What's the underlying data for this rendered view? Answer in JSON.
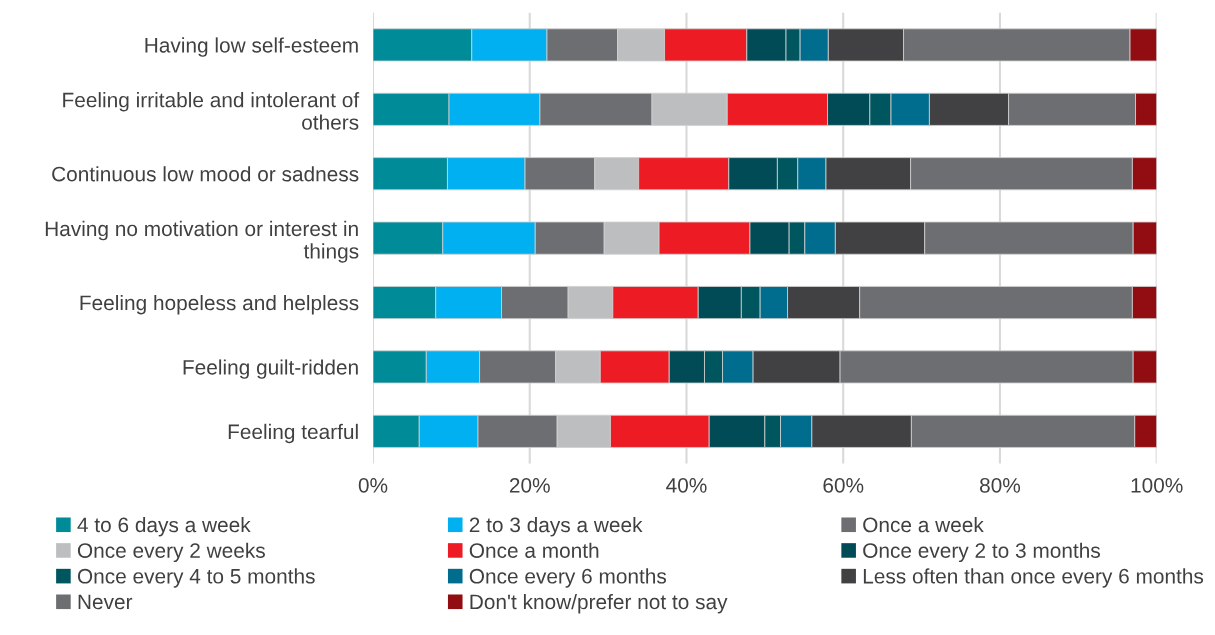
{
  "chart_data": {
    "type": "bar",
    "orientation": "horizontal",
    "stacked": true,
    "grid": "x",
    "legend": "bottom",
    "categories": [
      "Having low self-esteem",
      "Feeling irritable and intolerant of others",
      "Continuous low mood or sadness",
      "Having no motivation or interest in things",
      "Feeling hopeless and helpless",
      "Feeling guilt-ridden",
      "Feeling tearful"
    ],
    "xlim": [
      0,
      100
    ],
    "xticks": [
      {
        "value": 0,
        "label": "0%"
      },
      {
        "value": 20,
        "label": "20%"
      },
      {
        "value": 40,
        "label": "40%"
      },
      {
        "value": 60,
        "label": "60%"
      },
      {
        "value": 80,
        "label": "80%"
      },
      {
        "value": 100,
        "label": "100%"
      }
    ],
    "series": [
      {
        "name": "4 to 6 days a week",
        "color": "#008b99",
        "values": [
          12.6,
          9.7,
          9.5,
          8.9,
          8.0,
          6.8,
          5.9
        ]
      },
      {
        "name": "2 to 3 days a week",
        "color": "#00b0f0",
        "values": [
          9.6,
          11.6,
          9.9,
          11.8,
          8.4,
          6.8,
          7.5
        ]
      },
      {
        "name": "Once a week",
        "color": "#6d6e71",
        "values": [
          9.0,
          14.3,
          8.9,
          8.8,
          8.5,
          9.7,
          10.1
        ]
      },
      {
        "name": "Once every 2 weeks",
        "color": "#bcbec0",
        "values": [
          6.0,
          9.6,
          5.6,
          7.0,
          5.7,
          5.7,
          6.8
        ]
      },
      {
        "name": "Once a month",
        "color": "#ed1c24",
        "values": [
          10.5,
          12.8,
          11.5,
          11.6,
          10.9,
          8.8,
          12.6
        ]
      },
      {
        "name": "Once every 2 to 3 months",
        "color": "#004b55",
        "values": [
          5.0,
          5.4,
          6.2,
          5.0,
          5.5,
          4.5,
          7.1
        ]
      },
      {
        "name": "Once every 4 to 5 months",
        "color": "#00565f",
        "values": [
          1.8,
          2.7,
          2.6,
          2.0,
          2.4,
          2.3,
          2.0
        ]
      },
      {
        "name": "Once every 6 months",
        "color": "#006c8e",
        "values": [
          3.6,
          4.9,
          3.6,
          3.9,
          3.5,
          3.9,
          4.0
        ]
      },
      {
        "name": "Less often than once every 6 months",
        "color": "#414042",
        "values": [
          9.6,
          10.1,
          10.8,
          11.4,
          9.2,
          11.1,
          12.7
        ]
      },
      {
        "name": "Never",
        "color": "#6d6e71",
        "values": [
          28.9,
          16.2,
          28.3,
          26.6,
          34.8,
          37.4,
          28.5
        ]
      },
      {
        "name": "Don't know/prefer not to say",
        "color": "#920d12",
        "values": [
          3.4,
          2.7,
          3.1,
          3.0,
          3.1,
          3.0,
          2.8
        ]
      }
    ]
  }
}
